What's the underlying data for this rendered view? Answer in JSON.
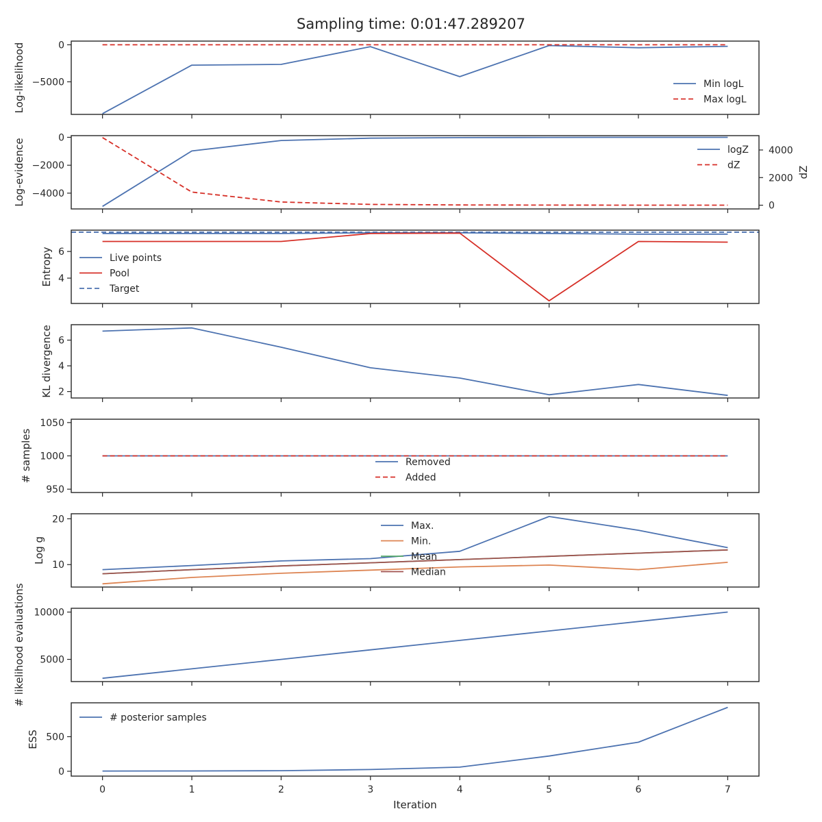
{
  "chart_data": {
    "title": "Sampling time: 0:01:47.289207",
    "xlabel": "Iteration",
    "x": [
      0,
      1,
      2,
      3,
      4,
      5,
      6,
      7
    ],
    "xticks": [
      "0",
      "1",
      "2",
      "3",
      "4",
      "5",
      "6",
      "7"
    ],
    "xlim": [
      -0.35,
      7.35
    ],
    "colors": {
      "blue": "#4c72b0",
      "red": "#d62f27",
      "orange": "#dd8452",
      "green": "#55a868",
      "brown": "#a0524f"
    },
    "panels": [
      {
        "type": "line",
        "ylabel": "Log-likelihood",
        "ylim": [
          -9400,
          500
        ],
        "yticks": [
          {
            "v": 0,
            "t": "0"
          },
          {
            "v": -5000,
            "t": "−5000"
          }
        ],
        "series": [
          {
            "name": "Min logL",
            "color": "#4c72b0",
            "dash": false,
            "values": [
              -9300,
              -2750,
              -2650,
              -250,
              -4300,
              -100,
              -400,
              -200
            ]
          },
          {
            "name": "Max logL",
            "color": "#d62f27",
            "dash": true,
            "values": [
              0,
              0,
              0,
              0,
              0,
              0,
              0,
              0
            ]
          }
        ],
        "legend": {
          "position": "lower-right",
          "entries": [
            "Min logL",
            "Max logL"
          ]
        }
      },
      {
        "type": "line",
        "ylabel": "Log-evidence",
        "y2label": "dZ",
        "ylim": [
          -5130,
          120
        ],
        "yticks": [
          {
            "v": 0,
            "t": "0"
          },
          {
            "v": -2000,
            "t": "−2000"
          },
          {
            "v": -4000,
            "t": "−4000"
          }
        ],
        "y2lim": [
          -270,
          5040
        ],
        "y2ticks": [
          {
            "v": 0,
            "t": "0"
          },
          {
            "v": 2000,
            "t": "2000"
          },
          {
            "v": 4000,
            "t": "4000"
          }
        ],
        "series": [
          {
            "name": "logZ",
            "color": "#4c72b0",
            "dash": false,
            "axis": "left",
            "values": [
              -4950,
              -980,
              -230,
              -60,
              -20,
              -10,
              -5,
              -3
            ]
          },
          {
            "name": "dZ",
            "color": "#d62f27",
            "dash": true,
            "axis": "right",
            "values": [
              4900,
              950,
              230,
              60,
              20,
              10,
              5,
              3
            ]
          }
        ],
        "legend": {
          "position": "upper-right",
          "entries": [
            "logZ",
            "dZ"
          ]
        }
      },
      {
        "type": "line",
        "ylabel": "Entropy",
        "ylim": [
          2.1,
          7.6
        ],
        "yticks": [
          {
            "v": 4,
            "t": "4"
          },
          {
            "v": 6,
            "t": "6"
          }
        ],
        "series": [
          {
            "name": "Live points",
            "color": "#4c72b0",
            "dash": false,
            "values": [
              7.35,
              7.35,
              7.35,
              7.4,
              7.4,
              7.35,
              7.3,
              7.3
            ]
          },
          {
            "name": "Pool",
            "color": "#d62f27",
            "dash": false,
            "values": [
              6.75,
              6.75,
              6.75,
              7.35,
              7.38,
              2.3,
              6.75,
              6.7
            ]
          }
        ],
        "hline": {
          "name": "Target",
          "color": "#4c72b0",
          "dash": true,
          "value": 7.45
        },
        "legend": {
          "position": "center-left",
          "entries": [
            "Live points",
            "Pool",
            "Target"
          ]
        }
      },
      {
        "type": "line",
        "ylabel": "KL divergence",
        "ylim": [
          1.5,
          7.2
        ],
        "yticks": [
          {
            "v": 2,
            "t": "2"
          },
          {
            "v": 4,
            "t": "4"
          },
          {
            "v": 6,
            "t": "6"
          }
        ],
        "series": [
          {
            "name": "KL",
            "color": "#4c72b0",
            "dash": false,
            "values": [
              6.7,
              6.95,
              5.45,
              3.85,
              3.05,
              1.75,
              2.55,
              1.7
            ]
          }
        ],
        "legend": null
      },
      {
        "type": "line",
        "ylabel": "# samples",
        "ylim": [
          945,
          1055
        ],
        "yticks": [
          {
            "v": 1050,
            "t": "1050"
          },
          {
            "v": 1000,
            "t": "1000"
          },
          {
            "v": 950,
            "t": "950"
          }
        ],
        "series": [
          {
            "name": "Removed",
            "color": "#4c72b0",
            "dash": false,
            "values": [
              1000,
              1000,
              1000,
              1000,
              1000,
              1000,
              1000,
              1000
            ]
          },
          {
            "name": "Added",
            "color": "#d62f27",
            "dash": true,
            "values": [
              1000,
              1000,
              1000,
              1000,
              1000,
              1000,
              1000,
              1000
            ]
          }
        ],
        "legend": {
          "position": "center",
          "entries": [
            "Removed",
            "Added"
          ]
        }
      },
      {
        "type": "line",
        "ylabel": "Log g",
        "ylim": [
          5.1,
          21.1
        ],
        "yticks": [
          {
            "v": 20,
            "t": "20"
          },
          {
            "v": 10,
            "t": "10"
          }
        ],
        "series": [
          {
            "name": "Max.",
            "color": "#4c72b0",
            "dash": false,
            "values": [
              8.9,
              9.8,
              10.8,
              11.3,
              12.9,
              20.5,
              17.5,
              13.7
            ]
          },
          {
            "name": "Min.",
            "color": "#dd8452",
            "dash": false,
            "values": [
              5.8,
              7.2,
              8.1,
              8.8,
              9.5,
              9.9,
              8.9,
              10.5
            ]
          },
          {
            "name": "Mean",
            "color": "#55a868",
            "dash": false,
            "values": [
              8.0,
              8.9,
              9.7,
              10.4,
              11.1,
              11.8,
              12.5,
              13.2
            ]
          },
          {
            "name": "Median",
            "color": "#a0524f",
            "dash": false,
            "values": [
              8.0,
              8.9,
              9.7,
              10.4,
              11.1,
              11.8,
              12.5,
              13.2
            ]
          }
        ],
        "legend": {
          "position": "upper-center",
          "entries": [
            "Max.",
            "Min.",
            "Mean",
            "Median"
          ]
        }
      },
      {
        "type": "line",
        "ylabel": "# likelihood evaluations",
        "ylim": [
          2650,
          10400
        ],
        "yticks": [
          {
            "v": 10000,
            "t": "10000"
          },
          {
            "v": 5000,
            "t": "5000"
          }
        ],
        "series": [
          {
            "name": "evals",
            "color": "#4c72b0",
            "dash": false,
            "values": [
              3000,
              4000,
              5000,
              6000,
              7000,
              8000,
              9000,
              10000
            ]
          }
        ],
        "legend": null
      },
      {
        "type": "line",
        "ylabel": "ESS",
        "ylim": [
          -70,
          990
        ],
        "yticks": [
          {
            "v": 500,
            "t": "500"
          },
          {
            "v": 0,
            "t": "0"
          }
        ],
        "series": [
          {
            "name": "# posterior samples",
            "color": "#4c72b0",
            "dash": false,
            "values": [
              3,
              4,
              8,
              25,
              60,
              220,
              420,
              925
            ]
          }
        ],
        "legend": {
          "position": "upper-left",
          "entries": [
            "# posterior samples"
          ]
        }
      }
    ]
  }
}
